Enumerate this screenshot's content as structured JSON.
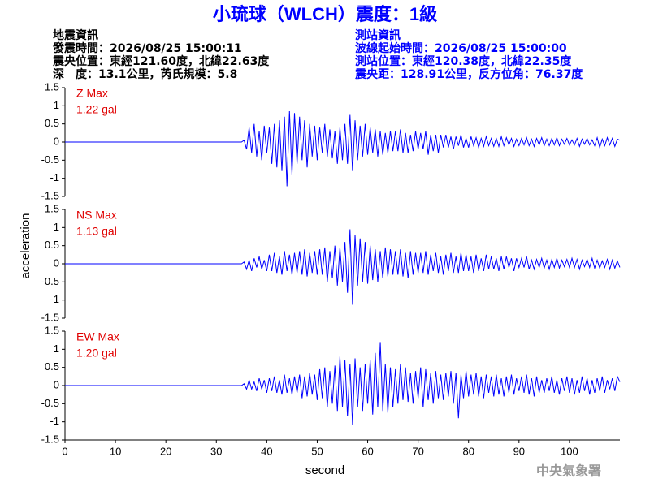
{
  "title": "小琉球（WLCH）震度：1級",
  "event_info": [
    "地震資訊",
    "發震時間：2026/08/25 15:00:11",
    "震央位置：東經121.60度，北緯22.63度",
    "深　度：13.1公里，芮氏規模：5.8"
  ],
  "station_info": [
    "測站資訊",
    "波線起始時間：2026/08/25 15:00:00",
    "測站位置：東經120.38度，北緯22.35度",
    "震央距：128.91公里，反方位角：76.37度"
  ],
  "y_label": "acceleration",
  "x_label": "second",
  "footer": "中央氣象署",
  "chart_data": [
    {
      "type": "line",
      "annotations": [
        "Z Max",
        "1.22 gal"
      ],
      "x": [
        0,
        35,
        35.5,
        36,
        36.5,
        37,
        37.5,
        38,
        38.5,
        39,
        39.5,
        40,
        40.5,
        41,
        41.5,
        42,
        42.5,
        43,
        43.5,
        44,
        44.5,
        45,
        45.5,
        46,
        46.5,
        47,
        47.5,
        48,
        48.5,
        49,
        49.5,
        50,
        50.5,
        51,
        51.5,
        52,
        52.5,
        53,
        53.5,
        54,
        54.5,
        55,
        55.5,
        56,
        56.5,
        57,
        57.5,
        58,
        58.5,
        59,
        59.5,
        60,
        60.5,
        61,
        61.5,
        62,
        62.5,
        63,
        63.5,
        64,
        64.5,
        65,
        65.5,
        66,
        66.5,
        67,
        67.5,
        68,
        68.5,
        69,
        69.5,
        70,
        70.5,
        71,
        71.5,
        72,
        72.5,
        73,
        73.5,
        74,
        74.5,
        75,
        75.5,
        76,
        76.5,
        77,
        77.5,
        78,
        78.5,
        79,
        79.5,
        80,
        80.5,
        81,
        81.5,
        82,
        82.5,
        83,
        83.5,
        84,
        84.5,
        85,
        85.5,
        86,
        86.5,
        87,
        87.5,
        88,
        88.5,
        89,
        89.5,
        90,
        90.5,
        91,
        91.5,
        92,
        92.5,
        93,
        93.5,
        94,
        94.5,
        95,
        95.5,
        96,
        96.5,
        97,
        97.5,
        98,
        98.5,
        99,
        99.5,
        100,
        100.5,
        101,
        101.5,
        102,
        102.5,
        103,
        103.5,
        104,
        104.5,
        105,
        105.5,
        106,
        106.5,
        107,
        107.5,
        108,
        108.5,
        109,
        109.5,
        110
      ],
      "series": [
        {
          "color": "#0000ff",
          "values": [
            0,
            0,
            0.05,
            -0.2,
            0.4,
            -0.3,
            0.5,
            -0.4,
            0.3,
            -0.5,
            0.45,
            -0.3,
            0.4,
            -0.6,
            0.5,
            -0.7,
            0.6,
            -0.8,
            0.7,
            -1.22,
            0.85,
            -0.9,
            0.8,
            -0.6,
            0.7,
            -0.5,
            0.6,
            -0.7,
            0.5,
            -0.4,
            0.45,
            -0.5,
            0.4,
            -0.3,
            0.5,
            -0.4,
            0.35,
            -0.45,
            0.3,
            -0.6,
            0.4,
            -0.5,
            0.5,
            -0.6,
            0.75,
            -0.8,
            0.6,
            -0.5,
            0.45,
            -0.4,
            0.5,
            -0.35,
            0.4,
            -0.3,
            0.35,
            -0.4,
            0.3,
            -0.35,
            0.25,
            -0.3,
            0.3,
            -0.25,
            0.3,
            -0.25,
            0.35,
            -0.3,
            0.25,
            -0.3,
            0.2,
            -0.25,
            0.3,
            -0.2,
            0.25,
            -0.2,
            0.3,
            -0.35,
            0.2,
            -0.25,
            0.2,
            -0.3,
            0.2,
            -0.15,
            0.2,
            -0.15,
            0.15,
            -0.2,
            0.15,
            -0.1,
            0.2,
            -0.15,
            0.1,
            -0.15,
            0.15,
            -0.1,
            0.12,
            -0.15,
            0.1,
            -0.12,
            0.15,
            -0.1,
            0.1,
            -0.12,
            0.1,
            -0.12,
            0.15,
            -0.1,
            0.12,
            -0.08,
            0.1,
            -0.12,
            0.08,
            -0.1,
            0.1,
            -0.08,
            0.12,
            -0.1,
            0.08,
            -0.12,
            0.1,
            -0.08,
            0.12,
            -0.1,
            0.08,
            -0.1,
            0.1,
            -0.08,
            0.12,
            -0.1,
            0.08,
            -0.06,
            0.1,
            -0.08,
            0.06,
            -0.08,
            0.1,
            -0.12,
            0.08,
            -0.06,
            0.1,
            -0.08,
            0.06,
            -0.1,
            0.12,
            -0.15,
            0.08,
            -0.1,
            0.12,
            -0.08,
            0.1,
            -0.12,
            0.08,
            0.05
          ]
        }
      ],
      "xlim": [
        0,
        110
      ],
      "ylim": [
        -1.5,
        1.5
      ],
      "yticks": [
        -1.5,
        -1,
        -0.5,
        0,
        0.5,
        1,
        1.5
      ]
    },
    {
      "type": "line",
      "annotations": [
        "NS Max",
        "1.13 gal"
      ],
      "x": [
        0,
        35,
        35.5,
        36,
        36.5,
        37,
        37.5,
        38,
        38.5,
        39,
        39.5,
        40,
        40.5,
        41,
        41.5,
        42,
        42.5,
        43,
        43.5,
        44,
        44.5,
        45,
        45.5,
        46,
        46.5,
        47,
        47.5,
        48,
        48.5,
        49,
        49.5,
        50,
        50.5,
        51,
        51.5,
        52,
        52.5,
        53,
        53.5,
        54,
        54.5,
        55,
        55.5,
        56,
        56.5,
        57,
        57.5,
        58,
        58.5,
        59,
        59.5,
        60,
        60.5,
        61,
        61.5,
        62,
        62.5,
        63,
        63.5,
        64,
        64.5,
        65,
        65.5,
        66,
        66.5,
        67,
        67.5,
        68,
        68.5,
        69,
        69.5,
        70,
        70.5,
        71,
        71.5,
        72,
        72.5,
        73,
        73.5,
        74,
        74.5,
        75,
        75.5,
        76,
        76.5,
        77,
        77.5,
        78,
        78.5,
        79,
        79.5,
        80,
        80.5,
        81,
        81.5,
        82,
        82.5,
        83,
        83.5,
        84,
        84.5,
        85,
        85.5,
        86,
        86.5,
        87,
        87.5,
        88,
        88.5,
        89,
        89.5,
        90,
        90.5,
        91,
        91.5,
        92,
        92.5,
        93,
        93.5,
        94,
        94.5,
        95,
        95.5,
        96,
        96.5,
        97,
        97.5,
        98,
        98.5,
        99,
        99.5,
        100,
        100.5,
        101,
        101.5,
        102,
        102.5,
        103,
        103.5,
        104,
        104.5,
        105,
        105.5,
        106,
        106.5,
        107,
        107.5,
        108,
        108.5,
        109,
        109.5,
        110
      ],
      "series": [
        {
          "color": "#0000ff",
          "values": [
            0,
            0,
            0.05,
            -0.15,
            0.1,
            -0.2,
            0.15,
            -0.1,
            0.2,
            -0.15,
            0.1,
            -0.2,
            0.25,
            -0.2,
            0.3,
            -0.25,
            0.2,
            -0.3,
            0.35,
            -0.2,
            0.25,
            -0.3,
            0.3,
            -0.25,
            0.35,
            -0.3,
            0.4,
            -0.35,
            0.3,
            -0.25,
            0.35,
            -0.3,
            0.4,
            -0.3,
            0.45,
            -0.5,
            0.35,
            -0.4,
            0.5,
            -0.6,
            0.45,
            -0.5,
            0.6,
            -0.8,
            0.95,
            -1.13,
            0.8,
            -0.6,
            0.7,
            -0.5,
            0.6,
            -0.55,
            0.5,
            -0.45,
            0.4,
            -0.5,
            0.35,
            -0.4,
            0.45,
            -0.35,
            0.4,
            -0.3,
            0.35,
            -0.3,
            0.4,
            -0.35,
            0.3,
            -0.4,
            0.35,
            -0.3,
            0.3,
            -0.25,
            0.3,
            -0.25,
            0.35,
            -0.3,
            0.25,
            -0.2,
            0.3,
            -0.25,
            0.2,
            -0.3,
            0.25,
            -0.2,
            0.3,
            -0.25,
            0.2,
            -0.25,
            0.3,
            -0.2,
            0.25,
            -0.2,
            0.2,
            -0.25,
            0.25,
            -0.2,
            0.15,
            -0.2,
            0.25,
            -0.15,
            0.2,
            -0.15,
            0.15,
            -0.2,
            0.2,
            -0.15,
            0.2,
            -0.1,
            0.15,
            -0.2,
            0.15,
            -0.1,
            0.15,
            -0.1,
            0.2,
            -0.15,
            0.1,
            -0.15,
            0.12,
            -0.1,
            0.15,
            -0.12,
            0.1,
            -0.15,
            0.12,
            -0.1,
            0.15,
            -0.12,
            0.1,
            -0.08,
            0.12,
            -0.1,
            0.15,
            -0.1,
            0.12,
            -0.15,
            0.1,
            -0.08,
            0.12,
            -0.1,
            0.15,
            -0.12,
            0.1,
            -0.12,
            0.08,
            -0.1,
            0.12,
            -0.15,
            0.1,
            -0.12,
            0.08,
            -0.1
          ]
        }
      ],
      "xlim": [
        0,
        110
      ],
      "ylim": [
        -1.5,
        1.5
      ],
      "yticks": [
        -1.5,
        -1,
        -0.5,
        0,
        0.5,
        1,
        1.5
      ]
    },
    {
      "type": "line",
      "annotations": [
        "EW Max",
        "1.20 gal"
      ],
      "x": [
        0,
        35,
        35.5,
        36,
        36.5,
        37,
        37.5,
        38,
        38.5,
        39,
        39.5,
        40,
        40.5,
        41,
        41.5,
        42,
        42.5,
        43,
        43.5,
        44,
        44.5,
        45,
        45.5,
        46,
        46.5,
        47,
        47.5,
        48,
        48.5,
        49,
        49.5,
        50,
        50.5,
        51,
        51.5,
        52,
        52.5,
        53,
        53.5,
        54,
        54.5,
        55,
        55.5,
        56,
        56.5,
        57,
        57.5,
        58,
        58.5,
        59,
        59.5,
        60,
        60.5,
        61,
        61.5,
        62,
        62.5,
        63,
        63.5,
        64,
        64.5,
        65,
        65.5,
        66,
        66.5,
        67,
        67.5,
        68,
        68.5,
        69,
        69.5,
        70,
        70.5,
        71,
        71.5,
        72,
        72.5,
        73,
        73.5,
        74,
        74.5,
        75,
        75.5,
        76,
        76.5,
        77,
        77.5,
        78,
        78.5,
        79,
        79.5,
        80,
        80.5,
        81,
        81.5,
        82,
        82.5,
        83,
        83.5,
        84,
        84.5,
        85,
        85.5,
        86,
        86.5,
        87,
        87.5,
        88,
        88.5,
        89,
        89.5,
        90,
        90.5,
        91,
        91.5,
        92,
        92.5,
        93,
        93.5,
        94,
        94.5,
        95,
        95.5,
        96,
        96.5,
        97,
        97.5,
        98,
        98.5,
        99,
        99.5,
        100,
        100.5,
        101,
        101.5,
        102,
        102.5,
        103,
        103.5,
        104,
        104.5,
        105,
        105.5,
        106,
        106.5,
        107,
        107.5,
        108,
        108.5,
        109,
        109.5,
        110
      ],
      "series": [
        {
          "color": "#0000ff",
          "values": [
            0,
            0,
            0.05,
            -0.1,
            0.15,
            -0.1,
            0.1,
            -0.15,
            0.2,
            -0.1,
            0.15,
            -0.2,
            0.2,
            -0.15,
            0.25,
            -0.2,
            0.15,
            -0.25,
            0.3,
            -0.2,
            0.2,
            -0.25,
            0.25,
            -0.2,
            0.3,
            -0.35,
            0.25,
            -0.3,
            0.35,
            -0.25,
            0.3,
            -0.4,
            0.45,
            -0.35,
            0.5,
            -0.6,
            0.4,
            -0.5,
            0.55,
            -0.7,
            0.8,
            -0.6,
            0.7,
            -0.85,
            0.6,
            -1.08,
            0.75,
            -0.6,
            0.5,
            -0.7,
            0.6,
            -0.5,
            0.7,
            -0.8,
            0.9,
            -0.6,
            1.2,
            -0.7,
            0.6,
            -0.75,
            0.5,
            -0.6,
            0.45,
            -0.5,
            0.6,
            -0.4,
            0.5,
            -0.45,
            0.35,
            -0.5,
            0.4,
            -0.35,
            0.5,
            -0.6,
            0.45,
            -0.4,
            0.35,
            -0.5,
            0.4,
            -0.35,
            0.3,
            -0.4,
            0.35,
            -0.3,
            0.4,
            -0.5,
            0.35,
            -0.9,
            0.3,
            -0.35,
            0.4,
            -0.3,
            0.3,
            -0.25,
            0.35,
            -0.3,
            0.25,
            -0.35,
            0.3,
            -0.2,
            0.25,
            -0.3,
            0.3,
            -0.25,
            0.2,
            -0.3,
            0.25,
            -0.2,
            0.3,
            -0.25,
            0.2,
            -0.15,
            0.25,
            -0.2,
            0.3,
            -0.25,
            0.2,
            -0.3,
            0.25,
            -0.2,
            0.15,
            -0.2,
            0.2,
            -0.15,
            0.25,
            -0.2,
            0.15,
            -0.25,
            0.2,
            -0.15,
            0.25,
            -0.2,
            0.2,
            -0.25,
            0.15,
            -0.2,
            0.25,
            -0.15,
            0.2,
            -0.25,
            0.15,
            -0.2,
            0.2,
            -0.15,
            0.25,
            -0.2,
            0.15,
            -0.1,
            0.2,
            -0.15,
            0.25,
            0.1
          ]
        }
      ],
      "xlim": [
        0,
        110
      ],
      "ylim": [
        -1.5,
        1.5
      ],
      "yticks": [
        -1.5,
        -1,
        -0.5,
        0,
        0.5,
        1,
        1.5
      ],
      "xticks": [
        0,
        10,
        20,
        30,
        40,
        50,
        60,
        70,
        80,
        90,
        100
      ]
    }
  ]
}
